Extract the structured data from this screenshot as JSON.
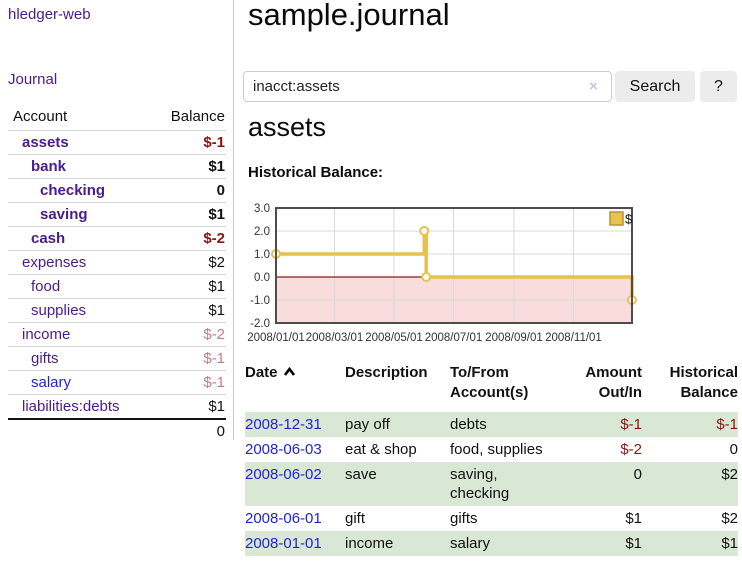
{
  "colors": {
    "purple_link": "#4a1b8c",
    "blue_link": "#2323cc",
    "neg_strong": "#8b1515",
    "neg_soft": "#c07e7e",
    "stripe_green": "#d8e8d4",
    "chart_line": "#e6c14e",
    "chart_legend_fill": "#e9c350",
    "chart_legend_border": "#b8922e",
    "chart_negative_fill": "#f9dcdc",
    "chart_zero_line": "#8b1a1a",
    "chart_grid": "#d9d9d9",
    "chart_border": "#4d4d4d"
  },
  "sidebar": {
    "brand": "hledger-web",
    "journal_link": "Journal",
    "accounts_table": {
      "headers": {
        "account": "Account",
        "balance": "Balance"
      },
      "rows": [
        {
          "name": "assets",
          "indent": 1,
          "bold": true,
          "balance": "$-1",
          "neg": "strong"
        },
        {
          "name": "bank",
          "indent": 2,
          "bold": true,
          "balance": "$1"
        },
        {
          "name": "checking",
          "indent": 3,
          "bold": true,
          "balance": "0"
        },
        {
          "name": "saving",
          "indent": 3,
          "bold": true,
          "balance": "$1"
        },
        {
          "name": "cash",
          "indent": 2,
          "bold": true,
          "balance": "$-2",
          "neg": "strong"
        },
        {
          "name": "expenses",
          "indent": 1,
          "bold": false,
          "balance": "$2"
        },
        {
          "name": "food",
          "indent": 2,
          "bold": false,
          "balance": "$1"
        },
        {
          "name": "supplies",
          "indent": 2,
          "bold": false,
          "balance": "$1"
        },
        {
          "name": "income",
          "indent": 1,
          "bold": false,
          "balance": "$-2",
          "neg": "soft"
        },
        {
          "name": "gifts",
          "indent": 2,
          "bold": false,
          "balance": "$-1",
          "neg": "soft"
        },
        {
          "name": "salary",
          "indent": 2,
          "bold": false,
          "balance": "$-1",
          "neg": "soft",
          "unvisited": true
        },
        {
          "name": "liabilities:debts",
          "indent": 1,
          "bold": false,
          "balance": "$1"
        }
      ],
      "total": "0"
    }
  },
  "main": {
    "title": "sample.journal",
    "search": {
      "value": "inacct:assets",
      "clear_icon": "×",
      "button_label": "Search",
      "help_label": "?"
    },
    "account_heading": "assets",
    "chart_heading": "Historical Balance:",
    "register": {
      "headers": {
        "date": "Date",
        "description": "Description",
        "accounts": "To/From\nAccount(s)",
        "amount": "Amount\nOut/In",
        "balance": "Historical\nBalance"
      },
      "rows": [
        {
          "date": "2008-12-31",
          "description": "pay off",
          "accounts": "debts",
          "amount": "$-1",
          "amount_neg": true,
          "balance": "$-1",
          "balance_neg": true
        },
        {
          "date": "2008-06-03",
          "description": "eat & shop",
          "accounts": "food, supplies",
          "amount": "$-2",
          "amount_neg": true,
          "balance": "0",
          "balance_neg": false
        },
        {
          "date": "2008-06-02",
          "description": "save",
          "accounts": "saving, checking",
          "amount": "0",
          "amount_neg": false,
          "balance": "$2",
          "balance_neg": false
        },
        {
          "date": "2008-06-01",
          "description": "gift",
          "accounts": "gifts",
          "amount": "$1",
          "amount_neg": false,
          "balance": "$2",
          "balance_neg": false
        },
        {
          "date": "2008-01-01",
          "description": "income",
          "accounts": "salary",
          "amount": "$1",
          "amount_neg": false,
          "balance": "$1",
          "balance_neg": false
        }
      ]
    }
  },
  "chart_data": {
    "type": "line",
    "title": "Historical Balance:",
    "step": true,
    "series": [
      {
        "name": "$",
        "points": [
          [
            "2008-01-01",
            1
          ],
          [
            "2008-06-01",
            2
          ],
          [
            "2008-06-03",
            0
          ],
          [
            "2008-12-31",
            -1
          ]
        ]
      }
    ],
    "x_range": [
      "2008-01-01",
      "2008-12-31"
    ],
    "x_ticks": [
      "2008-01-01",
      "2008-03-01",
      "2008-05-01",
      "2008-07-01",
      "2008-09-01",
      "2008-11-01"
    ],
    "x_tick_labels": [
      "2008/01/01",
      "2008/03/01",
      "2008/05/01",
      "2008/07/01",
      "2008/09/01",
      "2008/11/01"
    ],
    "ylim": [
      -2,
      3
    ],
    "y_ticks": [
      3,
      2,
      1,
      0,
      -1,
      -2
    ],
    "y_tick_labels": [
      "3.0",
      "2.0",
      "1.0",
      "0.0",
      "-1.0",
      "-2.0"
    ],
    "grid": true,
    "legend_position": "top-right",
    "negative_region_shaded": true
  }
}
